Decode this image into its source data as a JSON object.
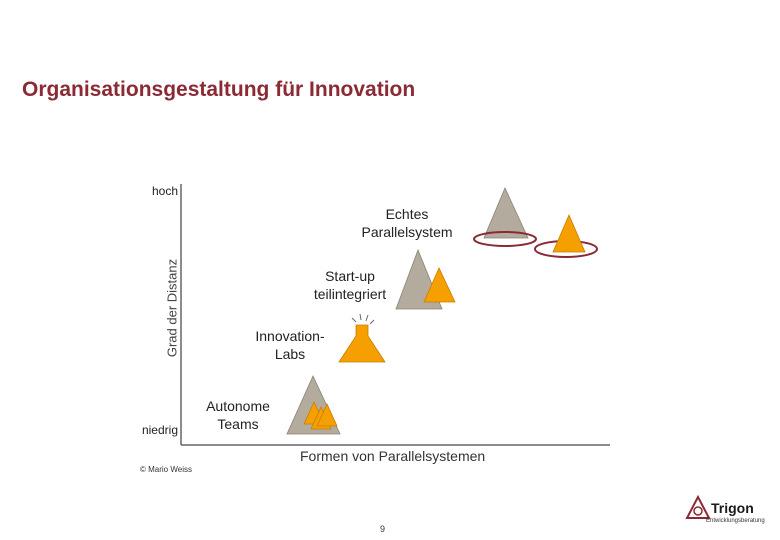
{
  "title": "Organisationsgestaltung für Innovation",
  "axes": {
    "y_high": "hoch",
    "y_low": "niedrig",
    "y_label": "Grad der Distanz",
    "x_label": "Formen von Parallelsystemen"
  },
  "items": [
    {
      "label_line1": "Echtes",
      "label_line2": "Parallelsystem"
    },
    {
      "label_line1": "Start-up",
      "label_line2": "teilintegriert"
    },
    {
      "label_line1": "Innovation-",
      "label_line2": "Labs"
    },
    {
      "label_line1": "Autonome",
      "label_line2": "Teams"
    }
  ],
  "footer": {
    "copyright": "© Mario Weiss",
    "page_number": "9",
    "logo_name": "Trigon",
    "logo_sub": "Entwicklungsberatung"
  },
  "colors": {
    "title": "#8b2a35",
    "gray_triangle": "#b3ab9d",
    "orange": "#f5a000",
    "axis": "#666666",
    "ellipse": "#8b2a35"
  }
}
